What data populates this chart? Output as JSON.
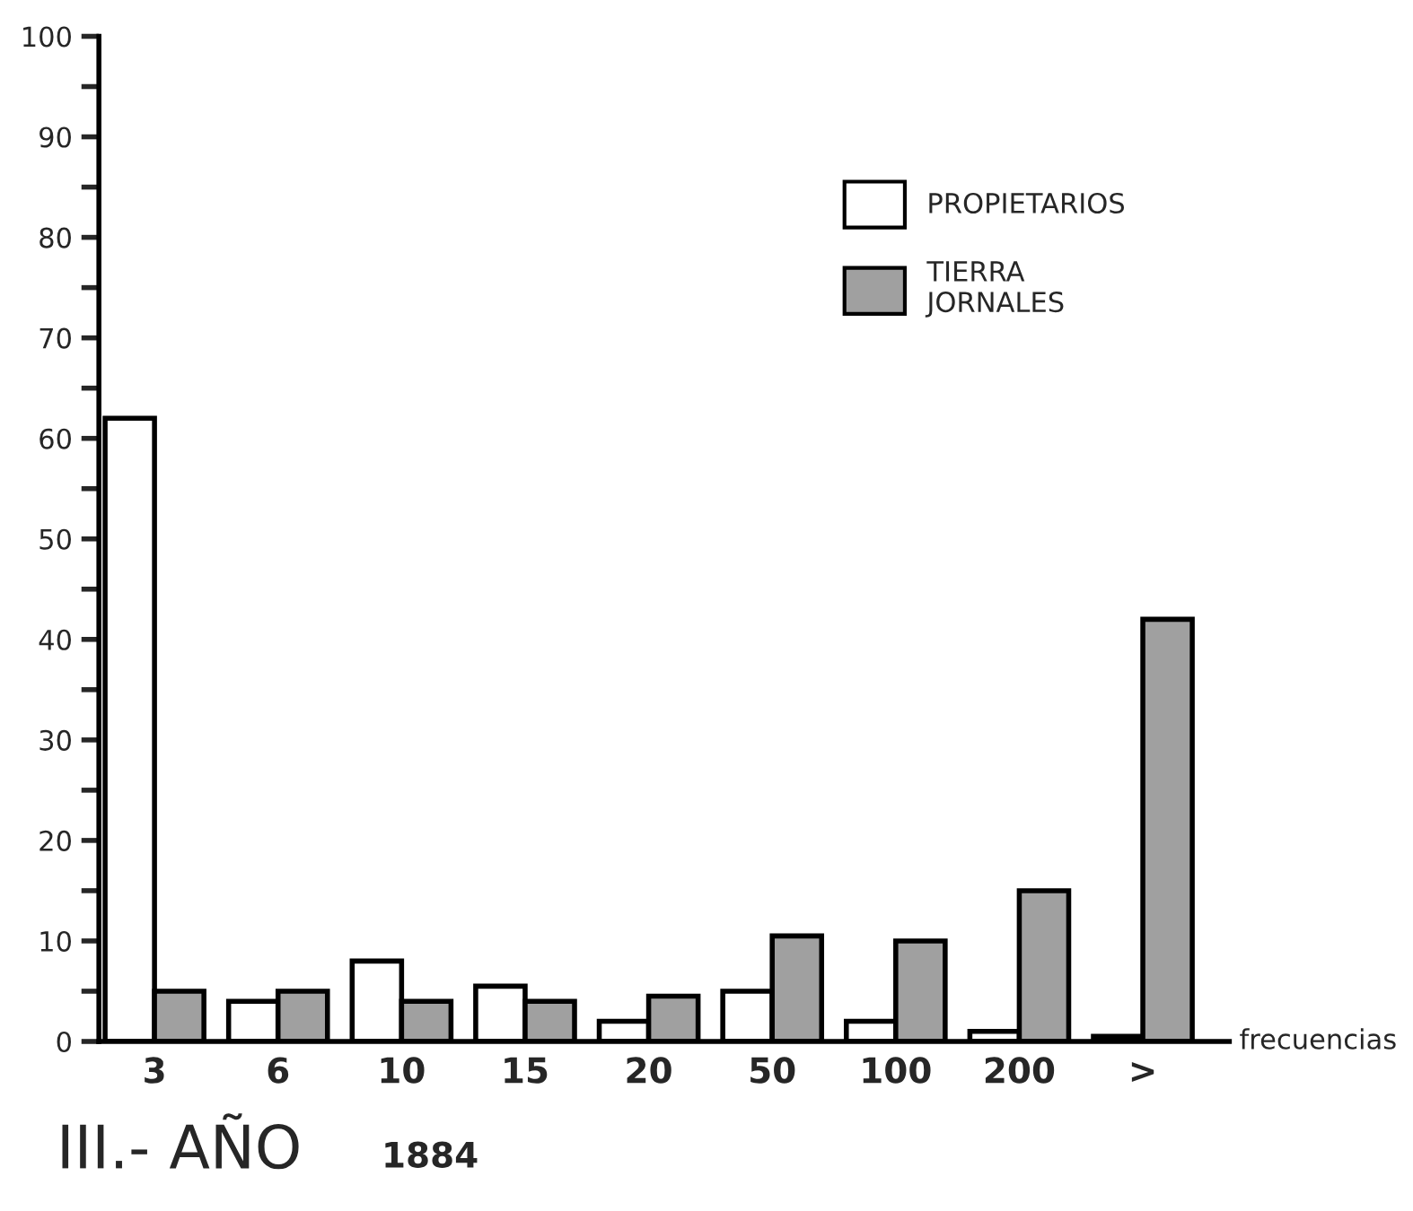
{
  "chart_data": {
    "type": "bar",
    "title": "III.- AÑO",
    "subtitle": "1884",
    "xlabel": "frecuencias",
    "categories": [
      "3",
      "6",
      "10",
      "15",
      "20",
      "50",
      "100",
      "200",
      ">"
    ],
    "series": [
      {
        "name": "PROPIETARIOS",
        "color": "#ffffff",
        "values": [
          62,
          4,
          8,
          5.5,
          2,
          5,
          2,
          1,
          0.5
        ]
      },
      {
        "name": "TIERRA\nJORNALES",
        "color": "#a0a0a0",
        "values": [
          5,
          5,
          4,
          4,
          4.5,
          10.5,
          10,
          15,
          42
        ]
      }
    ],
    "ylim": [
      0,
      100
    ],
    "yticks": [
      0,
      {
        "value": 5,
        "label": null
      },
      10,
      {
        "value": 15,
        "label": null
      },
      20,
      {
        "value": 25,
        "label": null
      },
      30,
      {
        "value": 35,
        "label": null
      },
      40,
      {
        "value": 45,
        "label": null
      },
      50,
      {
        "value": 55,
        "label": null
      },
      60,
      {
        "value": 65,
        "label": null
      },
      70,
      {
        "value": 75,
        "label": null
      },
      80,
      {
        "value": 85,
        "label": null
      },
      90,
      {
        "value": 95,
        "label": null
      },
      100
    ],
    "grid": false,
    "legend": "top right"
  }
}
